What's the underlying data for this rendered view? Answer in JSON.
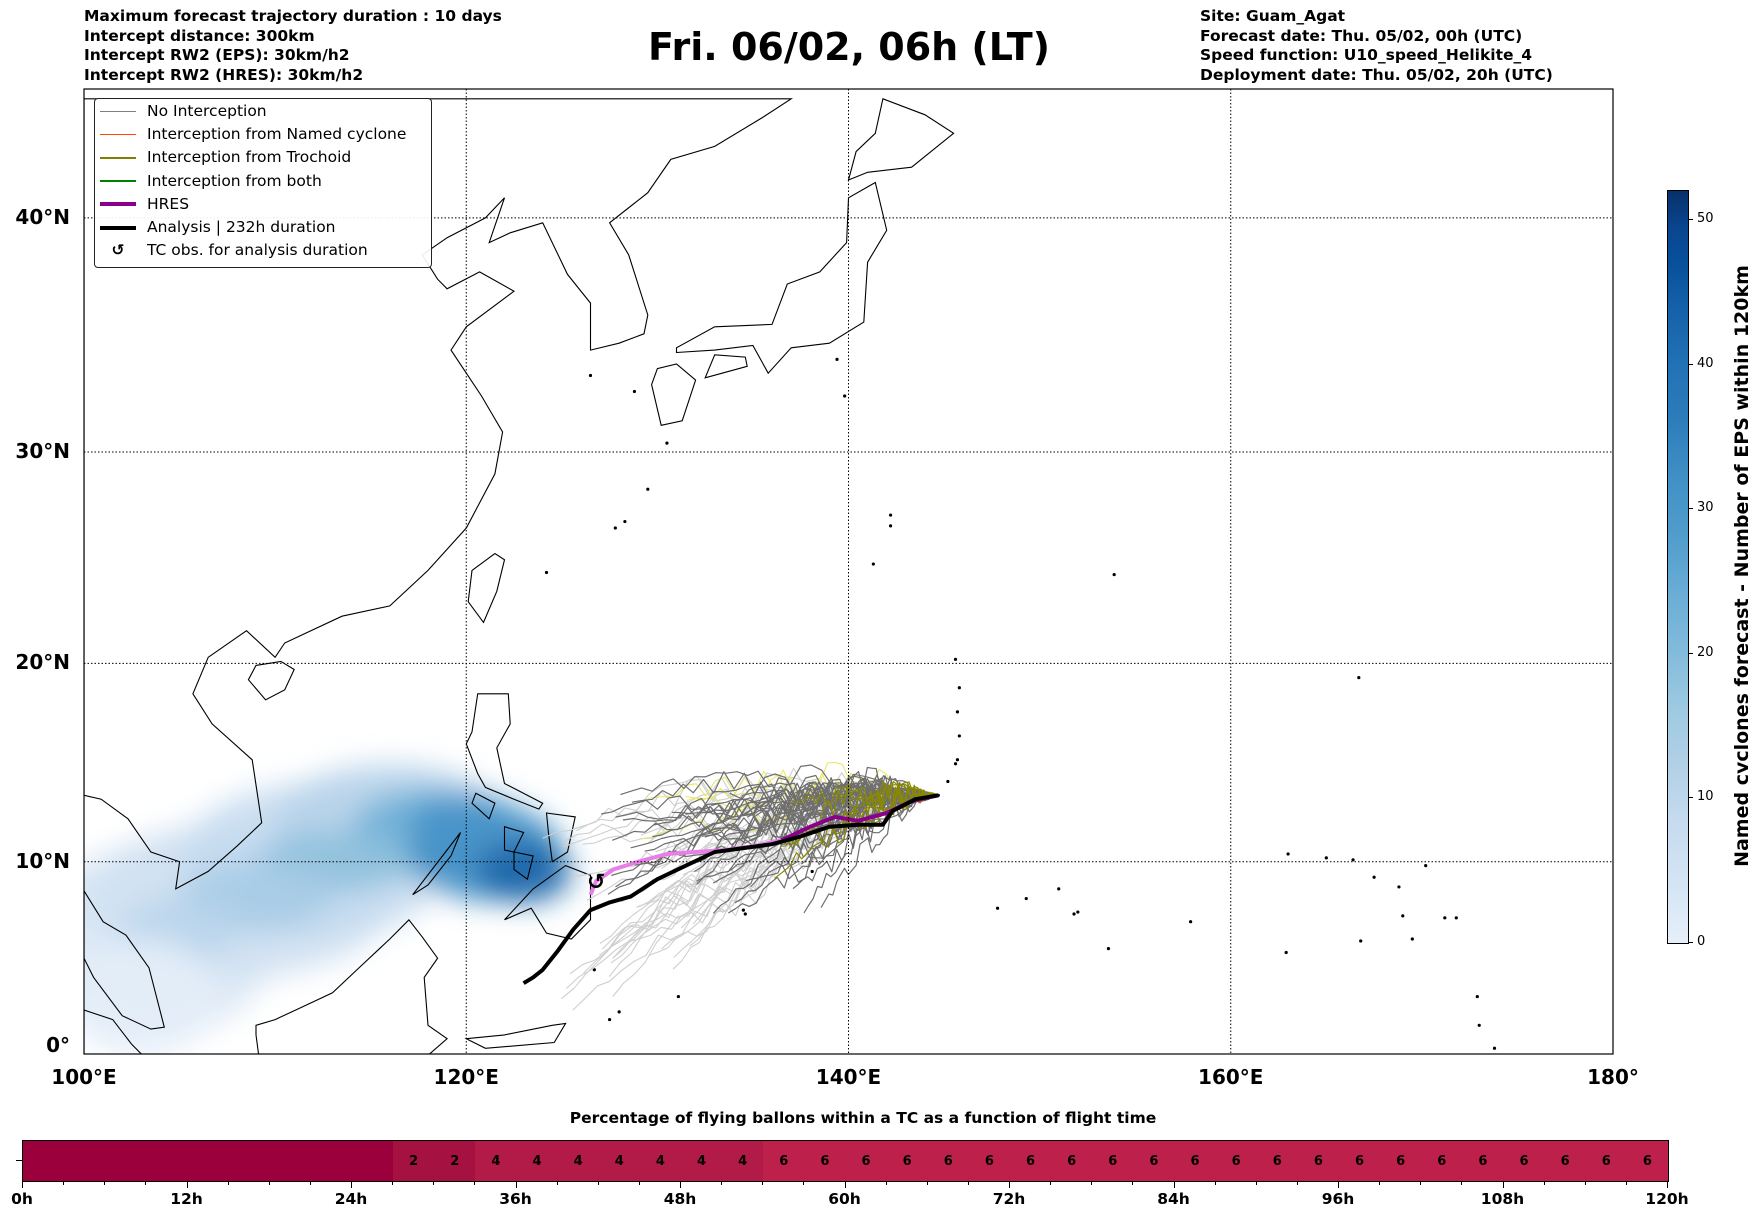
{
  "header_left": [
    "Maximum forecast trajectory duration : 10 days",
    "Intercept distance: 300km",
    "Intercept RW2 (EPS):  30km/h2",
    "Intercept RW2 (HRES): 30km/h2"
  ],
  "title": "Fri. 06/02, 06h (LT)",
  "header_right": [
    "Site: Guam_Agat",
    "Forecast date: Thu. 05/02, 00h (UTC)",
    "Speed function: U10_speed_Helikite_4",
    "Deployment date: Thu. 05/02, 20h (UTC)"
  ],
  "legend": [
    {
      "label": "No Interception",
      "color": "#808080",
      "kind": "line"
    },
    {
      "label": "Interception from Named cyclone",
      "color": "#ff4500",
      "kind": "line"
    },
    {
      "label": "Interception from Trochoid",
      "color": "#808000",
      "kind": "line"
    },
    {
      "label": "Interception from both",
      "color": "#008000",
      "kind": "line"
    },
    {
      "label": "HRES",
      "color": "#8b008b",
      "kind": "thick"
    },
    {
      "label": "Analysis | 232h duration",
      "color": "#000000",
      "kind": "thick"
    },
    {
      "label": "TC obs. for analysis duration",
      "color": "#000000",
      "kind": "symbol",
      "symbol": "↺"
    }
  ],
  "map": {
    "lat_labels": [
      {
        "lat": 0,
        "label": "0°"
      },
      {
        "lat": 10,
        "label": "10°N"
      },
      {
        "lat": 20,
        "label": "20°N"
      },
      {
        "lat": 30,
        "label": "30°N"
      },
      {
        "lat": 40,
        "label": "40°N"
      }
    ],
    "lon_labels": [
      {
        "lon": 100,
        "label": "100°E"
      },
      {
        "lon": 120,
        "label": "120°E"
      },
      {
        "lon": 140,
        "label": "140°E"
      },
      {
        "lon": 160,
        "label": "160°E"
      },
      {
        "lon": 180,
        "label": "180°"
      }
    ],
    "extent": {
      "lon": [
        100,
        180
      ],
      "lat": [
        0,
        44.6
      ]
    },
    "site": {
      "name": "Guam_Agat",
      "lon": 144.7,
      "lat": 13.4
    },
    "analysis_track": [
      [
        144.7,
        13.4
      ],
      [
        143.5,
        13.2
      ],
      [
        142.3,
        12.6
      ],
      [
        141.8,
        11.9
      ],
      [
        140.5,
        11.9
      ],
      [
        139,
        11.8
      ],
      [
        137.5,
        11.3
      ],
      [
        136,
        10.9
      ],
      [
        134.5,
        10.7
      ],
      [
        133,
        10.5
      ],
      [
        131.5,
        9.8
      ],
      [
        130,
        9.1
      ],
      [
        128.6,
        8.2
      ],
      [
        127.5,
        7.9
      ],
      [
        126.5,
        7.5
      ],
      [
        125.6,
        6.5
      ],
      [
        124.8,
        5.4
      ],
      [
        124,
        4.4
      ],
      [
        123.5,
        4.0
      ],
      [
        123,
        3.7
      ]
    ],
    "hres_track": [
      [
        144.7,
        13.4
      ],
      [
        143.3,
        13.1
      ],
      [
        142,
        12.5
      ],
      [
        140.5,
        12.1
      ],
      [
        139.3,
        12.3
      ],
      [
        138,
        11.8
      ],
      [
        136.5,
        11.1
      ],
      [
        135,
        10.8
      ],
      [
        133.5,
        10.6
      ],
      [
        132,
        10.5
      ],
      [
        130.5,
        10.4
      ],
      [
        129,
        10.0
      ],
      [
        127.7,
        9.6
      ],
      [
        126.8,
        9.0
      ],
      [
        126.5,
        8.3
      ]
    ],
    "tc_obs": {
      "lon": 126.8,
      "lat": 9.0,
      "symbol": "↺"
    }
  },
  "colorbar": {
    "title": "Named cyclones forecast - Number of EPS within 120km",
    "range": [
      0,
      52
    ],
    "ticks": [
      0,
      10,
      20,
      30,
      40,
      50
    ]
  },
  "timeline": {
    "title": "Percentage of flying ballons within a TC as a function of flight time",
    "step_hours": 3,
    "values": [
      0,
      0,
      0,
      0,
      0,
      0,
      0,
      0,
      0,
      2,
      2,
      4,
      4,
      4,
      4,
      4,
      4,
      4,
      6,
      6,
      6,
      6,
      6,
      6,
      6,
      6,
      6,
      6,
      6,
      6,
      6,
      6,
      6,
      6,
      6,
      6,
      6,
      6,
      6,
      6
    ],
    "tick_labels": [
      "0h",
      "12h",
      "24h",
      "36h",
      "48h",
      "60h",
      "72h",
      "84h",
      "96h",
      "108h",
      "120h"
    ],
    "colors": {
      "0": "#9b003d",
      "2": "#a51242",
      "4": "#b21a47",
      "6": "#bd214b"
    }
  }
}
